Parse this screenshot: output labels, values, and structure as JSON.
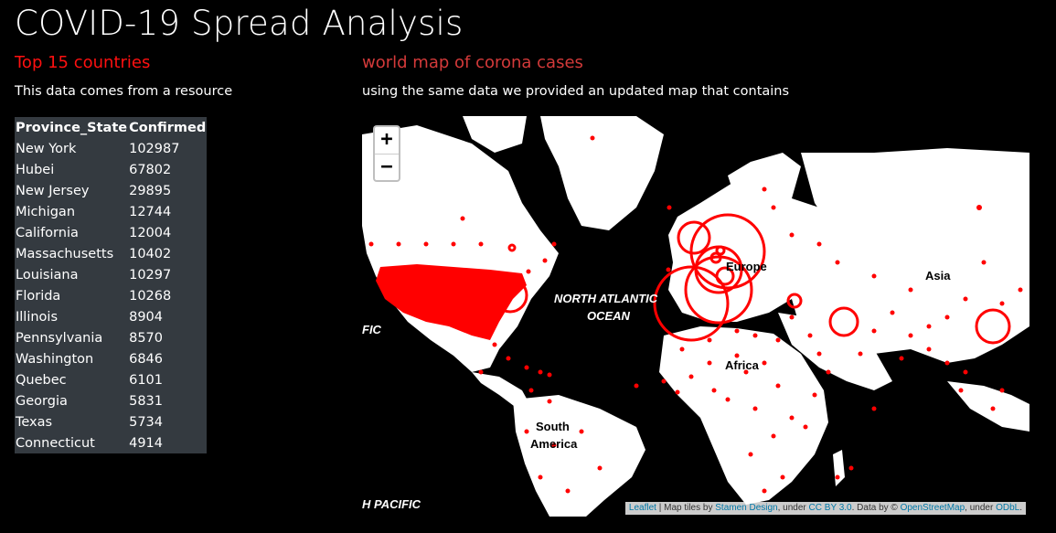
{
  "page": {
    "title": "COVID-19 Spread Analysis"
  },
  "left": {
    "heading": "Top 15 countries",
    "description": "This data comes from a resource",
    "table": {
      "headers": [
        "Province_State",
        "Confirmed"
      ],
      "rows": [
        [
          "New York",
          "102987"
        ],
        [
          "Hubei",
          "67802"
        ],
        [
          "New Jersey",
          "29895"
        ],
        [
          "Michigan",
          "12744"
        ],
        [
          "California",
          "12004"
        ],
        [
          "Massachusetts",
          "10402"
        ],
        [
          "Louisiana",
          "10297"
        ],
        [
          "Florida",
          "10268"
        ],
        [
          "Illinois",
          "8904"
        ],
        [
          "Pennsylvania",
          "8570"
        ],
        [
          "Washington",
          "6846"
        ],
        [
          "Quebec",
          "6101"
        ],
        [
          "Georgia",
          "5831"
        ],
        [
          "Texas",
          "5734"
        ],
        [
          "Connecticut",
          "4914"
        ]
      ]
    }
  },
  "right": {
    "heading": "world map of corona cases",
    "description": "using the same data we provided an updated map that contains"
  },
  "map": {
    "zoom_in": "+",
    "zoom_out": "−",
    "labels": {
      "north_atlantic_1": "NORTH ATLANTIC",
      "north_atlantic_2": "OCEAN",
      "pacific_left": "FIC",
      "south_pacific": "H PACIFIC",
      "europe": "Europe",
      "asia": "Asia",
      "africa": "Africa",
      "south_america_1": "South",
      "south_america_2": "America"
    },
    "attribution": {
      "leaflet": "Leaflet",
      "sep": " | Map tiles by ",
      "stamen": "Stamen Design",
      "under1": ", under ",
      "ccby": "CC BY 3.0",
      "data_by": ". Data by © ",
      "osm": "OpenStreetMap",
      "under2": ", under ",
      "odbl": "ODbL",
      "end": "."
    },
    "colors": {
      "marker": "#ff0000",
      "land": "#ffffff",
      "water": "#000000"
    }
  }
}
